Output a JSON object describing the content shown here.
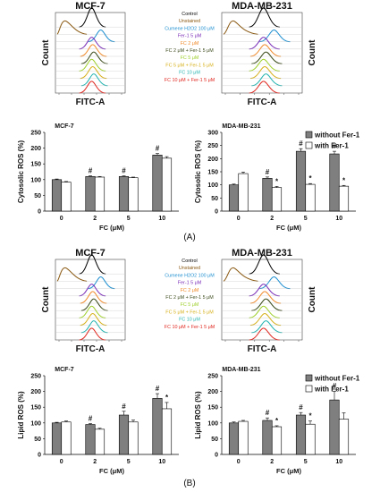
{
  "panel_labels": [
    "(A)",
    "(B)"
  ],
  "flow": {
    "x_label": "FITC-A",
    "y_label": "Count",
    "cell_lines": [
      "MCF-7",
      "MDA-MB-231"
    ],
    "legend": [
      {
        "label": "Control",
        "color": "#000000"
      },
      {
        "label": "Unstained",
        "color": "#8b5a14"
      },
      {
        "label": "Cumene H2O2 100 μM",
        "color": "#1e8fd0"
      },
      {
        "label": "Fer-1 5 μM",
        "color": "#7a2db8"
      },
      {
        "label": "FC 2 μM",
        "color": "#f08a2a"
      },
      {
        "label": "FC 2 μM + Fer-1 5 μM",
        "color": "#3a4a1a"
      },
      {
        "label": "FC 5 μM",
        "color": "#9ed02a"
      },
      {
        "label": "FC 5 μM + Fer-1 5 μM",
        "color": "#d6b01a"
      },
      {
        "label": "FC 10 μM",
        "color": "#22b3b0"
      },
      {
        "label": "FC 10 μM + Fer-1 5 μM",
        "color": "#e0261e"
      }
    ]
  },
  "legend_bars": {
    "without": "without Fer-1",
    "with": "with Fer-1",
    "without_color": "#7f7f7f",
    "with_color": "#ffffff"
  },
  "chart_data": [
    {
      "type": "bar",
      "panel": "A",
      "title": "MCF-7",
      "ylabel": "Cytosolic ROS (%)",
      "xlabel": "FC (μM)",
      "categories": [
        "0",
        "2",
        "5",
        "10"
      ],
      "ylim": [
        0,
        250
      ],
      "yticks": [
        "0",
        "50",
        "100",
        "150",
        "200",
        "250"
      ],
      "series": [
        {
          "name": "without Fer-1",
          "values": [
            100,
            110,
            110,
            178
          ],
          "errors": [
            2,
            2,
            2,
            5
          ]
        },
        {
          "name": "with Fer-1",
          "values": [
            92,
            108,
            106,
            168
          ],
          "errors": [
            2,
            2,
            2,
            5
          ]
        }
      ],
      "annotations": [
        {
          "category": "2",
          "series": 0,
          "text": "#"
        },
        {
          "category": "5",
          "series": 0,
          "text": "#"
        },
        {
          "category": "10",
          "series": 0,
          "text": "#"
        }
      ]
    },
    {
      "type": "bar",
      "panel": "A",
      "title": "MDA-MB-231",
      "ylabel": "Cytosolic ROS (%)",
      "xlabel": "FC (μM)",
      "categories": [
        "0",
        "2",
        "5",
        "10"
      ],
      "ylim": [
        0,
        300
      ],
      "yticks": [
        "0",
        "50",
        "100",
        "150",
        "200",
        "250",
        "300"
      ],
      "series": [
        {
          "name": "without Fer-1",
          "values": [
            100,
            125,
            228,
            218
          ],
          "errors": [
            3,
            5,
            10,
            10
          ]
        },
        {
          "name": "with Fer-1",
          "values": [
            143,
            90,
            102,
            95
          ],
          "errors": [
            6,
            4,
            3,
            3
          ]
        }
      ],
      "annotations": [
        {
          "category": "2",
          "series": 0,
          "text": "#"
        },
        {
          "category": "2",
          "series": 1,
          "text": "*"
        },
        {
          "category": "5",
          "series": 0,
          "text": "#"
        },
        {
          "category": "5",
          "series": 1,
          "text": "*"
        },
        {
          "category": "10",
          "series": 0,
          "text": "#"
        },
        {
          "category": "10",
          "series": 1,
          "text": "*"
        }
      ]
    },
    {
      "type": "bar",
      "panel": "B",
      "title": "MCF-7",
      "ylabel": "Lipid ROS (%)",
      "xlabel": "FC (μM)",
      "categories": [
        "0",
        "2",
        "5",
        "10"
      ],
      "ylim": [
        0,
        250
      ],
      "yticks": [
        "0",
        "50",
        "100",
        "150",
        "200",
        "250"
      ],
      "series": [
        {
          "name": "without Fer-1",
          "values": [
            100,
            95,
            125,
            178
          ],
          "errors": [
            2,
            3,
            12,
            15
          ]
        },
        {
          "name": "with Fer-1",
          "values": [
            103,
            80,
            103,
            145
          ],
          "errors": [
            3,
            3,
            6,
            20
          ]
        }
      ],
      "annotations": [
        {
          "category": "2",
          "series": 0,
          "text": "#"
        },
        {
          "category": "5",
          "series": 0,
          "text": "#"
        },
        {
          "category": "10",
          "series": 0,
          "text": "#"
        },
        {
          "category": "10",
          "series": 1,
          "text": "*"
        }
      ]
    },
    {
      "type": "bar",
      "panel": "B",
      "title": "MDA-MB-231",
      "ylabel": "Lipid ROS (%)",
      "xlabel": "FC (μM)",
      "categories": [
        "0",
        "2",
        "5",
        "10"
      ],
      "ylim": [
        0,
        250
      ],
      "yticks": [
        "0",
        "50",
        "100",
        "150",
        "200",
        "250"
      ],
      "series": [
        {
          "name": "without Fer-1",
          "values": [
            100,
            108,
            125,
            173
          ],
          "errors": [
            3,
            8,
            8,
            28
          ]
        },
        {
          "name": "with Fer-1",
          "values": [
            105,
            88,
            96,
            112
          ],
          "errors": [
            3,
            3,
            10,
            20
          ]
        }
      ],
      "annotations": [
        {
          "category": "2",
          "series": 0,
          "text": "#"
        },
        {
          "category": "2",
          "series": 1,
          "text": "*"
        },
        {
          "category": "5",
          "series": 0,
          "text": "#"
        },
        {
          "category": "5",
          "series": 1,
          "text": "*"
        },
        {
          "category": "10",
          "series": 0,
          "text": "#"
        }
      ]
    }
  ]
}
